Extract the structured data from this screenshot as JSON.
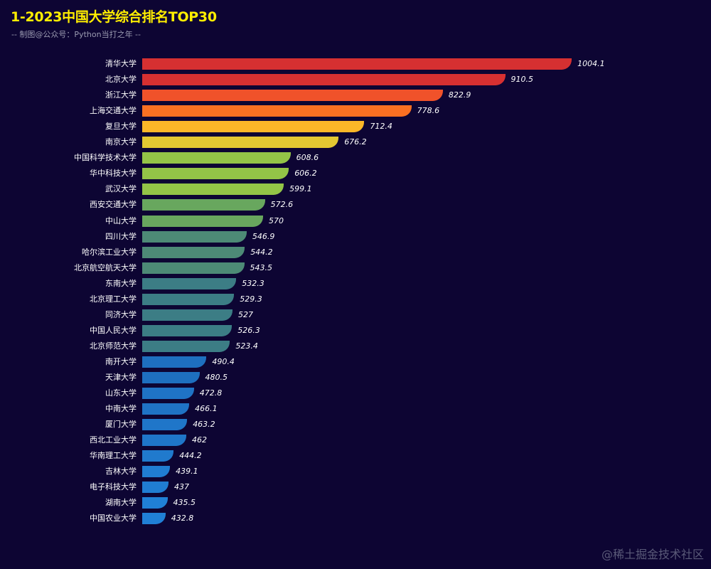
{
  "title": "1-2023中国大学综合排名TOP30",
  "subtitle": "-- 制图@公众号：Python当打之年 --",
  "watermark": "@稀土掘金技术社区",
  "chart_data": {
    "type": "bar",
    "orientation": "horizontal",
    "title": "1-2023中国大学综合排名TOP30",
    "subtitle": "-- 制图@公众号：Python当打之年 --",
    "xlabel": "",
    "ylabel": "",
    "grid": false,
    "axis_visible": false,
    "categories": [
      "清华大学",
      "北京大学",
      "浙江大学",
      "上海交通大学",
      "复旦大学",
      "南京大学",
      "中国科学技术大学",
      "华中科技大学",
      "武汉大学",
      "西安交通大学",
      "中山大学",
      "四川大学",
      "哈尔滨工业大学",
      "北京航空航天大学",
      "东南大学",
      "北京理工大学",
      "同济大学",
      "中国人民大学",
      "北京师范大学",
      "南开大学",
      "天津大学",
      "山东大学",
      "中南大学",
      "厦门大学",
      "西北工业大学",
      "华南理工大学",
      "吉林大学",
      "电子科技大学",
      "湖南大学",
      "中国农业大学"
    ],
    "values": [
      1004.1,
      910.5,
      822.9,
      778.6,
      712.4,
      676.2,
      608.6,
      606.2,
      599.1,
      572.6,
      570,
      546.9,
      544.2,
      543.5,
      532.3,
      529.3,
      527,
      526.3,
      523.4,
      490.4,
      480.5,
      472.8,
      466.1,
      463.2,
      462,
      444.2,
      439.1,
      437,
      435.5,
      432.8
    ],
    "colors": [
      "#d63031",
      "#d63031",
      "#f0522a",
      "#fa7022",
      "#fbb728",
      "#e3c832",
      "#93c447",
      "#93c447",
      "#93c447",
      "#68a75e",
      "#68a75e",
      "#4d8a76",
      "#4d8a76",
      "#4d8a76",
      "#3c7d85",
      "#3c7d85",
      "#3c7d85",
      "#3c7d85",
      "#3c7d85",
      "#1e6fbf",
      "#1e6fbf",
      "#1f73c5",
      "#1f73c5",
      "#1f76c9",
      "#1f76c9",
      "#207acd",
      "#207dd2",
      "#207dd2",
      "#2080d6",
      "#2080d6"
    ],
    "xlim": [
      400,
      1010
    ]
  }
}
